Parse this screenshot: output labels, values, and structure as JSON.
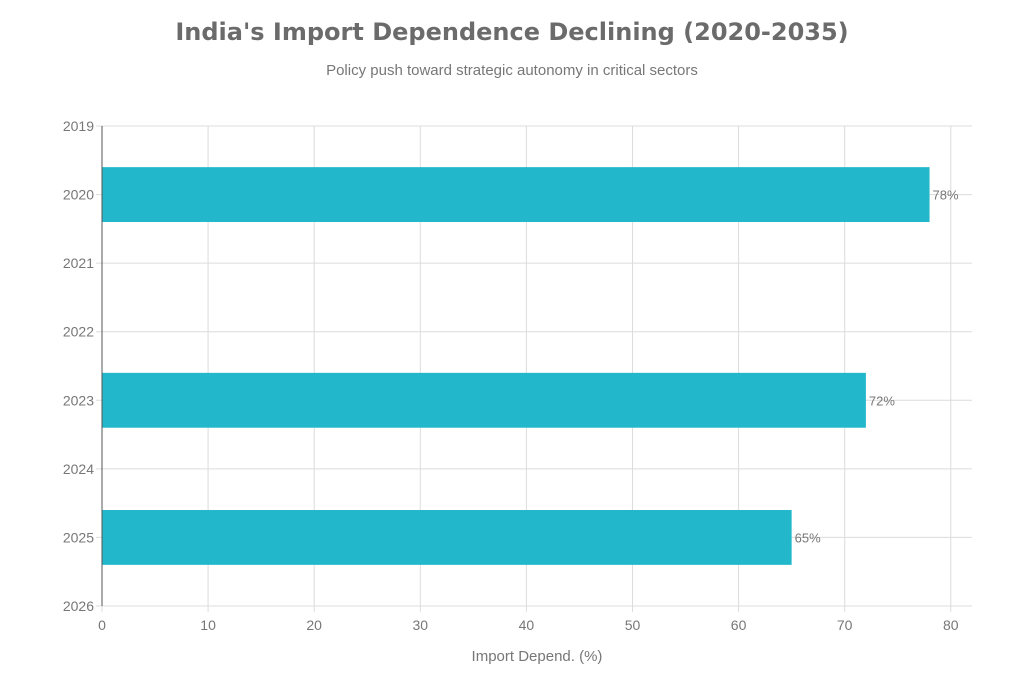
{
  "chart_data": {
    "type": "bar",
    "orientation": "horizontal",
    "title": "India's Import Dependence Declining (2020-2035)",
    "subtitle": "Policy push toward strategic autonomy in critical sectors",
    "categories": [
      2020,
      2023,
      2025
    ],
    "values": [
      78,
      72,
      65
    ],
    "data_labels": [
      "78%",
      "72%",
      "65%"
    ],
    "xlabel": "Import Depend. (%)",
    "ylabel": "",
    "xlim": [
      0,
      82
    ],
    "ylim": [
      2019,
      2026
    ],
    "xticks": [
      0,
      10,
      20,
      30,
      40,
      50,
      60,
      70,
      80
    ],
    "yticks": [
      2019,
      2020,
      2021,
      2022,
      2023,
      2024,
      2025,
      2026
    ],
    "bar_color": "#22b7cb",
    "grid": true
  }
}
